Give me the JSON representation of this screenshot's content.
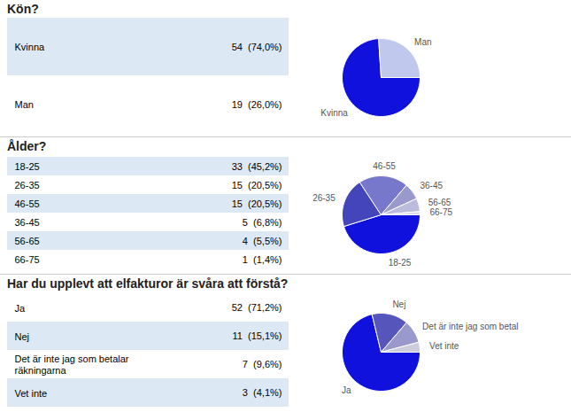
{
  "chart_data": [
    {
      "type": "pie",
      "title": "Kön?",
      "categories": [
        "Kvinna",
        "Man"
      ],
      "values": [
        54,
        19
      ],
      "value_labels": [
        "54  (74,0%)",
        "19  (26,0%)"
      ],
      "colors": [
        "#1111dd",
        "#c0c8ee"
      ],
      "table": {
        "labels": [
          "Kvinna",
          "Man"
        ],
        "colors": [
          "#dce8f3",
          "#ffffff"
        ]
      }
    },
    {
      "type": "pie",
      "title": "Ålder?",
      "categories": [
        "18-25",
        "26-35",
        "46-55",
        "36-45",
        "56-65",
        "66-75"
      ],
      "values": [
        33,
        15,
        15,
        5,
        4,
        1
      ],
      "value_labels": [
        "33  (45,2%)",
        "15  (20,5%)",
        "15  (20,5%)",
        "5  (6,8%)",
        "4  (5,5%)",
        "1  (1,4%)"
      ],
      "colors": [
        "#1111dd",
        "#4444bb",
        "#7777cc",
        "#9999cc",
        "#bbbbdd",
        "#ddddee"
      ],
      "table": {
        "labels": [
          "18-25",
          "26-35",
          "46-55",
          "36-45",
          "56-65",
          "66-75"
        ],
        "colors": [
          "#dce8f3",
          "#ffffff",
          "#dce8f3",
          "#ffffff",
          "#dce8f3",
          "#ffffff"
        ]
      }
    },
    {
      "type": "pie",
      "title": "Har du upplevt att elfakturor är svåra att förstå?",
      "categories": [
        "Ja",
        "Nej",
        "Det är inte jag som betal",
        "Vet inte"
      ],
      "values": [
        52,
        11,
        7,
        3
      ],
      "value_labels": [
        "52  (71,2%)",
        "11  (15,1%)",
        "7  (9,6%)",
        "3  (4,1%)"
      ],
      "colors": [
        "#1111dd",
        "#5555bb",
        "#9999cc",
        "#ccccdd"
      ],
      "table": {
        "labels": [
          "Ja",
          "Nej",
          "Det är inte jag som betalar\nräkningarna",
          "Vet inte"
        ],
        "colors": [
          "#ffffff",
          "#dce8f3",
          "#ffffff",
          "#dce8f3"
        ]
      }
    }
  ]
}
